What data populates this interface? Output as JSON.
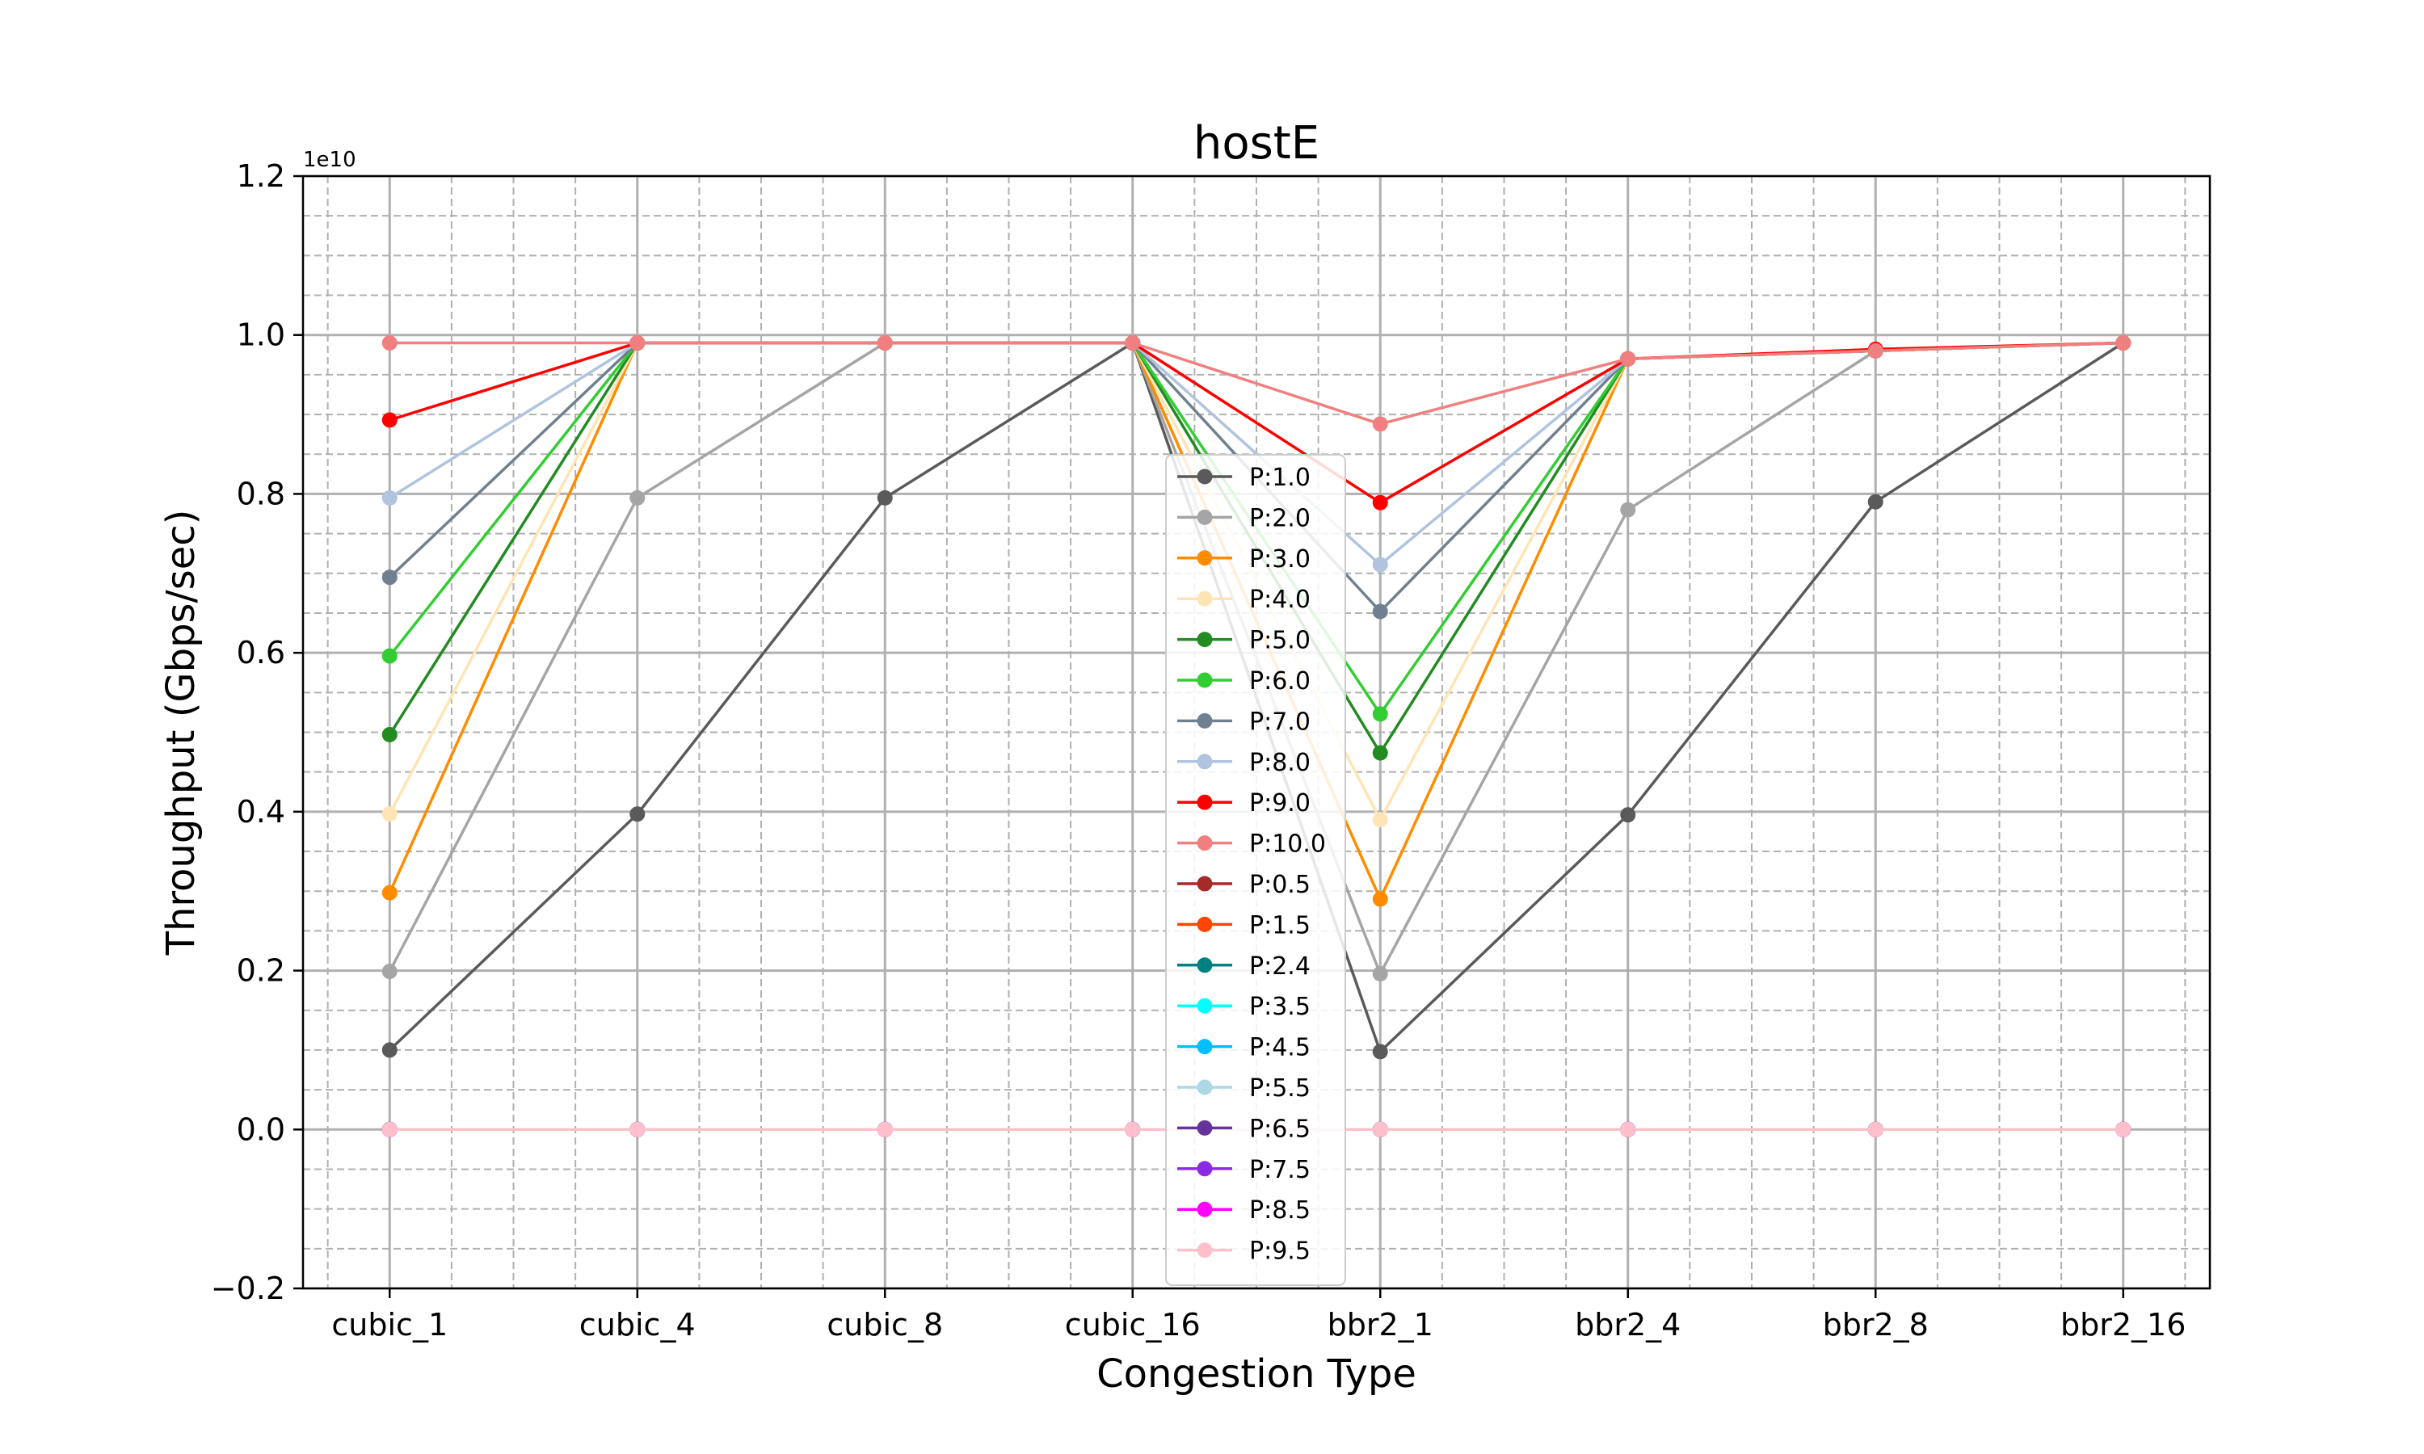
{
  "chart_data": {
    "type": "line",
    "title": "hostE",
    "xlabel": "Congestion Type",
    "ylabel": "Throughput (Gbps/sec)",
    "y_scale_label": "1e10",
    "ylim": [
      -0.2,
      1.2
    ],
    "y_ticks": [
      -0.2,
      0.0,
      0.2,
      0.4,
      0.6,
      0.8,
      1.0,
      1.2
    ],
    "y_tick_labels": [
      "−0.2",
      "0.0",
      "0.2",
      "0.4",
      "0.6",
      "0.8",
      "1.0",
      "1.2"
    ],
    "grid": "major solid, minor dashed",
    "legend_position": "center",
    "categories": [
      "cubic_1",
      "cubic_4",
      "cubic_8",
      "cubic_16",
      "bbr2_1",
      "bbr2_4",
      "bbr2_8",
      "bbr2_16"
    ],
    "series": [
      {
        "name": "P:1.0",
        "color": "#5a5a5a",
        "values": [
          0.1,
          0.397,
          0.795,
          0.99,
          0.098,
          0.396,
          0.79,
          0.99
        ]
      },
      {
        "name": "P:2.0",
        "color": "#a5a5a5",
        "values": [
          0.199,
          0.795,
          0.99,
          0.99,
          0.196,
          0.78,
          0.98,
          0.99
        ]
      },
      {
        "name": "P:3.0",
        "color": "#ff8c00",
        "values": [
          0.298,
          0.99,
          0.99,
          0.99,
          0.29,
          0.97,
          0.98,
          0.99
        ]
      },
      {
        "name": "P:4.0",
        "color": "#ffe4b5",
        "values": [
          0.397,
          0.99,
          0.99,
          0.99,
          0.39,
          0.97,
          0.98,
          0.99
        ]
      },
      {
        "name": "P:5.0",
        "color": "#228b22",
        "values": [
          0.497,
          0.99,
          0.99,
          0.99,
          0.474,
          0.97,
          0.98,
          0.99
        ]
      },
      {
        "name": "P:6.0",
        "color": "#32cd32",
        "values": [
          0.596,
          0.99,
          0.99,
          0.99,
          0.523,
          0.97,
          0.98,
          0.99
        ]
      },
      {
        "name": "P:7.0",
        "color": "#708090",
        "values": [
          0.695,
          0.99,
          0.99,
          0.99,
          0.652,
          0.97,
          0.98,
          0.99
        ]
      },
      {
        "name": "P:8.0",
        "color": "#b0c4de",
        "values": [
          0.795,
          0.99,
          0.99,
          0.99,
          0.711,
          0.97,
          0.98,
          0.99
        ]
      },
      {
        "name": "P:9.0",
        "color": "#ff0000",
        "values": [
          0.893,
          0.99,
          0.99,
          0.99,
          0.789,
          0.97,
          0.982,
          0.99
        ]
      },
      {
        "name": "P:10.0",
        "color": "#f08080",
        "values": [
          0.99,
          0.99,
          0.99,
          0.99,
          0.888,
          0.97,
          0.98,
          0.99
        ]
      },
      {
        "name": "P:0.5",
        "color": "#a52a2a",
        "values": [
          0,
          0,
          0,
          0,
          0,
          0,
          0,
          0
        ]
      },
      {
        "name": "P:1.5",
        "color": "#ff4500",
        "values": [
          0,
          0,
          0,
          0,
          0,
          0,
          0,
          0
        ]
      },
      {
        "name": "P:2.4",
        "color": "#008080",
        "values": [
          0,
          0,
          0,
          0,
          0,
          0,
          0,
          0
        ]
      },
      {
        "name": "P:3.5",
        "color": "#00ffff",
        "values": [
          0,
          0,
          0,
          0,
          0,
          0,
          0,
          0
        ]
      },
      {
        "name": "P:4.5",
        "color": "#00bfff",
        "values": [
          0,
          0,
          0,
          0,
          0,
          0,
          0,
          0
        ]
      },
      {
        "name": "P:5.5",
        "color": "#add8e6",
        "values": [
          0,
          0,
          0,
          0,
          0,
          0,
          0,
          0
        ]
      },
      {
        "name": "P:6.5",
        "color": "#663399",
        "values": [
          0,
          0,
          0,
          0,
          0,
          0,
          0,
          0
        ]
      },
      {
        "name": "P:7.5",
        "color": "#8a2be2",
        "values": [
          0,
          0,
          0,
          0,
          0,
          0,
          0,
          0
        ]
      },
      {
        "name": "P:8.5",
        "color": "#ff00ff",
        "values": [
          0,
          0,
          0,
          0,
          0,
          0,
          0,
          0
        ]
      },
      {
        "name": "P:9.5",
        "color": "#ffc0cb",
        "values": [
          0,
          0,
          0,
          0,
          0,
          0,
          0,
          0
        ]
      }
    ]
  }
}
